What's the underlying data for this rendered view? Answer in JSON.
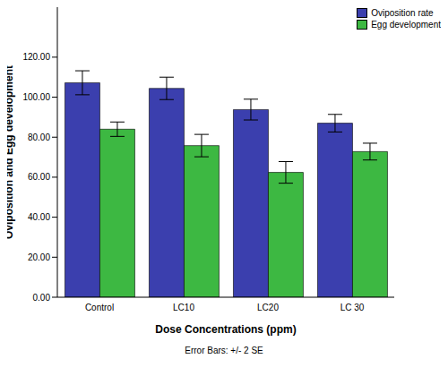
{
  "chart_data": {
    "type": "bar",
    "x_label": "Dose Concentrations (ppm)",
    "y_label": "Oviposition and Egg development",
    "annotation": "Error Bars: +/- 2 SE",
    "categories": [
      "Control",
      "LC10",
      "LC20",
      "LC 30"
    ],
    "series": [
      {
        "name": "Oviposition rate",
        "color": "#3b3fae",
        "values": [
          107.2,
          104.4,
          93.8,
          87
        ],
        "errors": [
          6,
          5.6,
          5.2,
          4.4
        ]
      },
      {
        "name": "Egg development",
        "color": "#3db842",
        "values": [
          84,
          75.8,
          62.4,
          72.8
        ],
        "errors": [
          3.6,
          5.6,
          5.4,
          4.2
        ]
      }
    ],
    "ylim": [
      0,
      145
    ],
    "yticks": [
      {
        "value": 0,
        "label": "0.00"
      },
      {
        "value": 20,
        "label": "20.00"
      },
      {
        "value": 40,
        "label": "40.00"
      },
      {
        "value": 60,
        "label": "60.00"
      },
      {
        "value": 80,
        "label": "80.00"
      },
      {
        "value": 100,
        "label": "100.00"
      },
      {
        "value": 120,
        "label": "120.00"
      }
    ],
    "grid": false,
    "legend": "upper right"
  }
}
